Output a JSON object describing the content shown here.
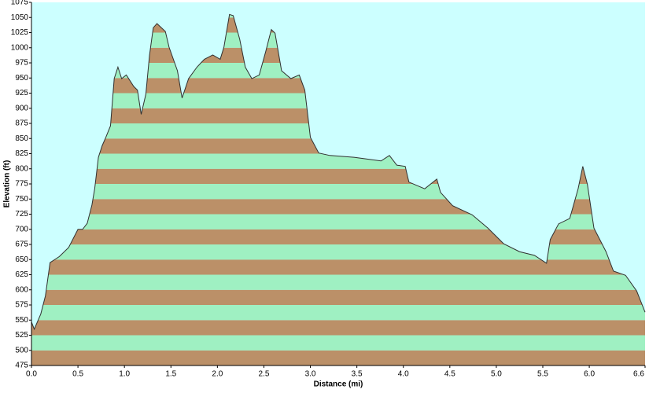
{
  "chart_data": {
    "type": "area",
    "xlabel": "Distance  (mi)",
    "ylabel": "Elevation (ft)",
    "x": [
      0.0,
      0.03,
      0.1,
      0.15,
      0.2,
      0.25,
      0.3,
      0.4,
      0.5,
      0.55,
      0.6,
      0.65,
      0.68,
      0.72,
      0.76,
      0.8,
      0.85,
      0.89,
      0.93,
      0.97,
      1.02,
      1.1,
      1.14,
      1.18,
      1.23,
      1.27,
      1.31,
      1.35,
      1.44,
      1.48,
      1.57,
      1.62,
      1.69,
      1.78,
      1.86,
      1.95,
      2.03,
      2.07,
      2.13,
      2.17,
      2.24,
      2.3,
      2.37,
      2.45,
      2.52,
      2.58,
      2.62,
      2.69,
      2.79,
      2.88,
      2.94,
      3.0,
      3.09,
      3.21,
      3.47,
      3.76,
      3.85,
      3.93,
      4.02,
      4.06,
      4.23,
      4.36,
      4.4,
      4.53,
      4.74,
      4.91,
      5.08,
      5.25,
      5.41,
      5.54,
      5.58,
      5.67,
      5.79,
      5.88,
      5.93,
      5.98,
      6.05,
      6.18,
      6.26,
      6.39,
      6.51,
      6.6
    ],
    "values": [
      547,
      535,
      560,
      590,
      645,
      650,
      655,
      670,
      700,
      700,
      710,
      740,
      767,
      819,
      838,
      852,
      871,
      949,
      968,
      949,
      955,
      936,
      930,
      890,
      923,
      988,
      1033,
      1040,
      1027,
      1001,
      962,
      917,
      949,
      968,
      981,
      988,
      981,
      1001,
      1055,
      1053,
      1014,
      968,
      949,
      955,
      994,
      1030,
      1024,
      962,
      949,
      955,
      930,
      852,
      826,
      822,
      819,
      813,
      822,
      806,
      804,
      778,
      767,
      783,
      761,
      739,
      724,
      702,
      676,
      663,
      657,
      644,
      683,
      709,
      718,
      767,
      804,
      774,
      702,
      663,
      631,
      624,
      598,
      563
    ],
    "xlim": [
      0,
      6.6
    ],
    "ylim": [
      475,
      1075
    ],
    "xticks": [
      {
        "value": 0,
        "label": "0.0"
      },
      0.5,
      {
        "value": 1,
        "label": "1.0"
      },
      1.5,
      {
        "value": 2,
        "label": "2.0"
      },
      2.5,
      {
        "value": 3,
        "label": "3.0"
      },
      3.5,
      {
        "value": 4,
        "label": "4.0"
      },
      4.5,
      {
        "value": 5,
        "label": "5.0"
      },
      5.5,
      {
        "value": 6,
        "label": "6.0"
      },
      6.6
    ],
    "yticks": [
      475,
      500,
      525,
      550,
      575,
      600,
      625,
      650,
      675,
      700,
      725,
      750,
      775,
      800,
      825,
      850,
      875,
      900,
      925,
      950,
      975,
      1000,
      1025,
      1050,
      1075
    ],
    "band_colors": [
      "#bb9068",
      "#9ff0c2"
    ],
    "background": "#ccffff",
    "line_color": "#303030"
  }
}
